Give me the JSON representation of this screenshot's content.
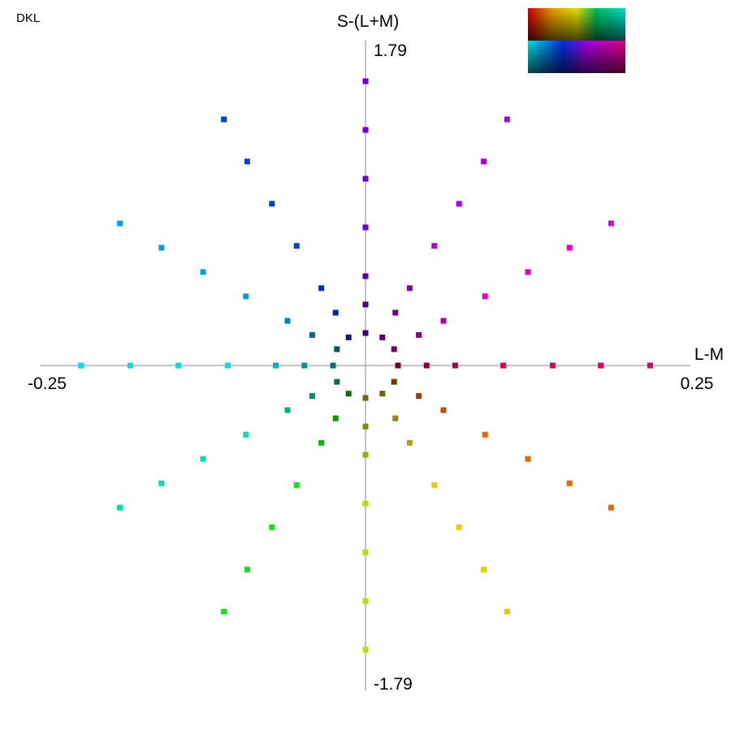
{
  "chart_data": {
    "type": "scatter",
    "label": "DKL",
    "x_label": "L-M",
    "y_label": "S-(L+M)",
    "xlim": [
      -0.25,
      0.25
    ],
    "ylim": [
      -1.79,
      1.79
    ],
    "xticks": [
      -0.25,
      0.25
    ],
    "yticks": [
      -1.79,
      1.79
    ],
    "x": [
      0.025,
      0.022,
      0.013,
      0,
      -0.013,
      -0.022,
      -0.025,
      -0.022,
      -0.013,
      0,
      0.013,
      0.022,
      0.047,
      0.041,
      0.023,
      0,
      -0.023,
      -0.041,
      -0.047,
      -0.041,
      -0.023,
      0,
      0.023,
      0.041,
      0.069,
      0.06,
      0.034,
      0,
      -0.034,
      -0.06,
      -0.069,
      -0.06,
      -0.034,
      0,
      0.034,
      0.06,
      0.106,
      0.092,
      0.053,
      0,
      -0.053,
      -0.092,
      -0.106,
      -0.092,
      -0.053,
      0,
      0.053,
      0.092,
      0.144,
      0.125,
      0.072,
      0,
      -0.072,
      -0.125,
      -0.144,
      -0.125,
      -0.072,
      0,
      0.072,
      0.125,
      0.181,
      0.157,
      0.091,
      0,
      -0.091,
      -0.157,
      -0.181,
      -0.157,
      -0.091,
      0,
      0.091,
      0.157,
      0.219,
      0.189,
      0.109,
      0,
      -0.109,
      -0.189,
      -0.219,
      -0.189,
      -0.109,
      0,
      0.109,
      0.189
    ],
    "y": [
      0,
      0.09,
      0.155,
      0.179,
      0.155,
      0.09,
      0,
      -0.09,
      -0.155,
      -0.179,
      -0.155,
      -0.09,
      0,
      0.168,
      0.291,
      0.336,
      0.291,
      0.168,
      0,
      -0.168,
      -0.291,
      -0.336,
      -0.291,
      -0.168,
      0,
      0.246,
      0.426,
      0.492,
      0.426,
      0.246,
      0,
      -0.246,
      -0.426,
      -0.492,
      -0.426,
      -0.246,
      0,
      0.381,
      0.659,
      0.761,
      0.659,
      0.381,
      0,
      -0.381,
      -0.659,
      -0.761,
      -0.659,
      -0.381,
      0,
      0.515,
      0.891,
      1.029,
      0.891,
      0.515,
      0,
      -0.515,
      -0.891,
      -1.029,
      -0.891,
      -0.515,
      0,
      0.649,
      1.124,
      1.298,
      1.124,
      0.649,
      0,
      -0.649,
      -1.124,
      -1.298,
      -1.124,
      -0.649,
      0,
      0.783,
      1.356,
      1.566,
      1.356,
      0.783,
      0,
      -0.783,
      -1.356,
      -1.566,
      -1.356,
      -0.783
    ],
    "colors": [
      "#70002d",
      "#700064",
      "#540070",
      "#350070",
      "#051e70",
      "#005070",
      "#007070",
      "#007050",
      "#0c700c",
      "#5a7000",
      "#706800",
      "#703500",
      "#92003a",
      "#920082",
      "#6d0092",
      "#450092",
      "#062792",
      "#006892",
      "#009292",
      "#009268",
      "#109210",
      "#759200",
      "#928700",
      "#924500",
      "#b30048",
      "#b300a0",
      "#8600b3",
      "#5500b3",
      "#0830b3",
      "#0080b3",
      "#00b3b3",
      "#00b380",
      "#13b313",
      "#90b300",
      "#b3a600",
      "#b35500",
      "#e0005a",
      "#e000c8",
      "#a800e0",
      "#6a00e0",
      "#0a3ce0",
      "#00a0e0",
      "#00e0e0",
      "#00e0a0",
      "#18e018",
      "#b4e000",
      "#e0d000",
      "#e06a00",
      "#e0005a",
      "#e000c8",
      "#a800e0",
      "#6a00e0",
      "#0a3ce0",
      "#00a0e0",
      "#00e0e0",
      "#00e0a0",
      "#18e018",
      "#b4e000",
      "#e0d000",
      "#e06a00",
      "#e0005a",
      "#e000c8",
      "#a800e0",
      "#6a00e0",
      "#0a3ce0",
      "#00a0e0",
      "#00e0e0",
      "#00e0a0",
      "#18e018",
      "#b4e000",
      "#e0d000",
      "#e06a00",
      "#e0005a",
      "#e000c8",
      "#a800e0",
      "#6a00e0",
      "#0a3ce0",
      "#00a0e0",
      "#00e0e0",
      "#00e0a0",
      "#18e018",
      "#b4e000",
      "#e0d000",
      "#e06a00"
    ]
  }
}
